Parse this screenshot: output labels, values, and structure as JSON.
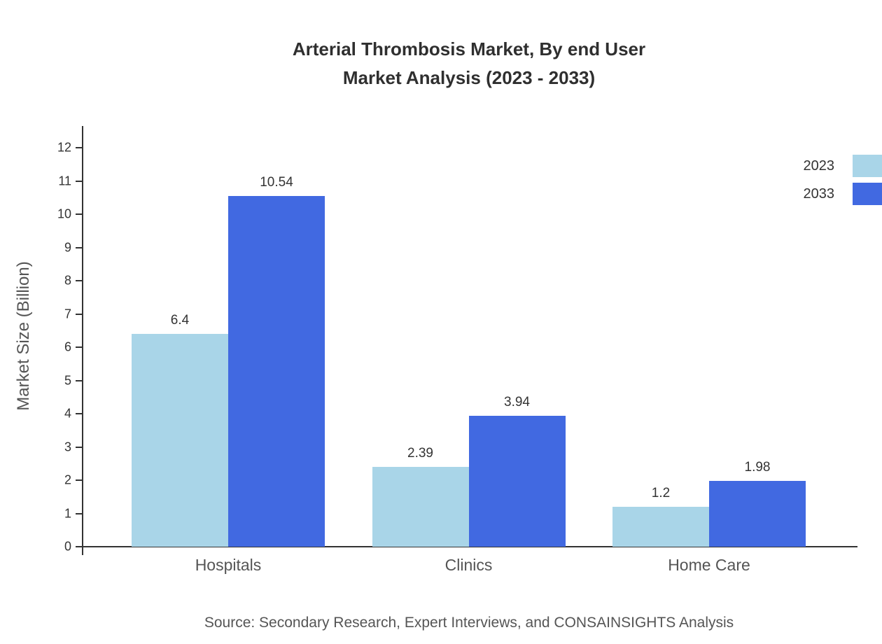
{
  "title": {
    "line1": "Arterial Thrombosis Market, By end User",
    "line2": "Market Analysis (2023 - 2033)"
  },
  "source": "Source: Secondary Research, Expert Interviews, and CONSAINSIGHTS Analysis",
  "chart_data": {
    "type": "bar",
    "title": "Arterial Thrombosis Market, By end User Market Analysis (2023 - 2033)",
    "categories": [
      "Hospitals",
      "Clinics",
      "Home Care"
    ],
    "series": [
      {
        "name": "2023",
        "color": "#a9d5e8",
        "values": [
          6.4,
          2.39,
          1.2
        ]
      },
      {
        "name": "2033",
        "color": "#4169e1",
        "values": [
          10.54,
          3.94,
          1.98
        ]
      }
    ],
    "xlabel": "",
    "ylabel": "Market Size (Billion)",
    "ylim": [
      0,
      12
    ],
    "yticks": [
      0,
      1,
      2,
      3,
      4,
      5,
      6,
      7,
      8,
      9,
      10,
      11,
      12
    ],
    "grid": false,
    "value_labels": true,
    "legend_position": "top-right"
  }
}
